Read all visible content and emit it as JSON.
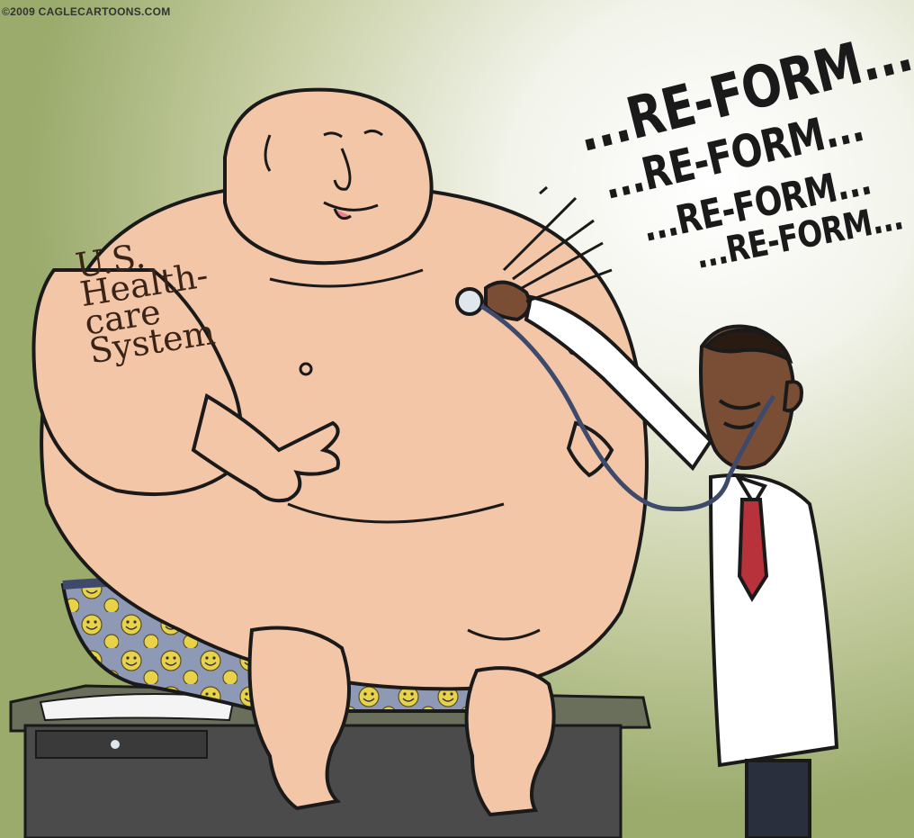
{
  "credit": "©2009 CAGLECARTOONS.COM",
  "chest_label": [
    "U.S.",
    "Health-",
    "care",
    "System"
  ],
  "sound_lines": [
    "...RE-FORM...",
    "...RE-FORM...",
    "...RE-FORM...",
    "...RE-FORM..."
  ],
  "colors": {
    "skin": "#f4c6a8",
    "shorts": "#8e99b5",
    "smiley": "#e8d24a",
    "coat": "#ffffff",
    "tie": "#b8323c",
    "table": "#4b4b4b",
    "background": "#aebb7e"
  }
}
